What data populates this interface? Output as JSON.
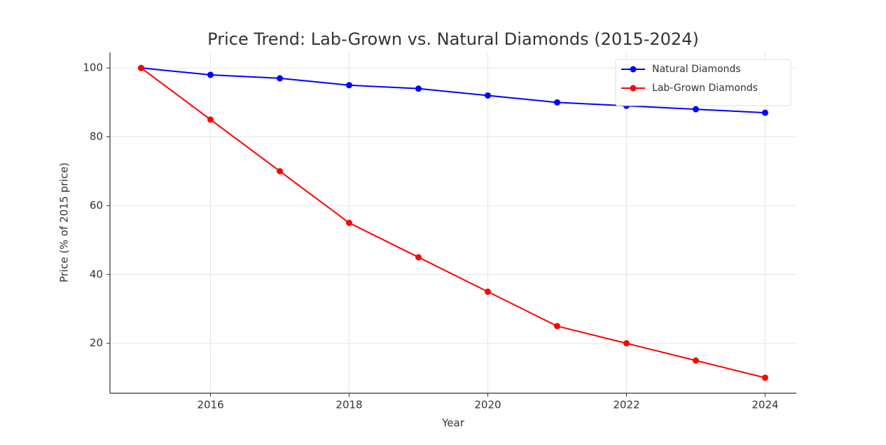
{
  "chart_data": {
    "type": "line",
    "title": "Price Trend: Lab-Grown vs. Natural Diamonds (2015-2024)",
    "x_label": "Year",
    "y_label": "Price (% of 2015 price)",
    "x": [
      2015,
      2016,
      2017,
      2018,
      2019,
      2020,
      2021,
      2022,
      2023,
      2024
    ],
    "series": [
      {
        "name": "Natural Diamonds",
        "color": "#0000ff",
        "values": [
          100,
          98,
          97,
          95,
          94,
          92,
          90,
          89,
          88,
          87
        ]
      },
      {
        "name": "Lab-Grown Diamonds",
        "color": "#ff0000",
        "values": [
          100,
          85,
          70,
          55,
          45,
          35,
          25,
          20,
          15,
          10
        ]
      }
    ],
    "xlim": [
      2014.55,
      2024.45
    ],
    "xticks": [
      2016,
      2018,
      2020,
      2022,
      2024
    ],
    "ylim": [
      5.5,
      104.5
    ],
    "yticks": [
      20,
      40,
      60,
      80,
      100
    ],
    "grid": true,
    "legend": "upper-right"
  }
}
